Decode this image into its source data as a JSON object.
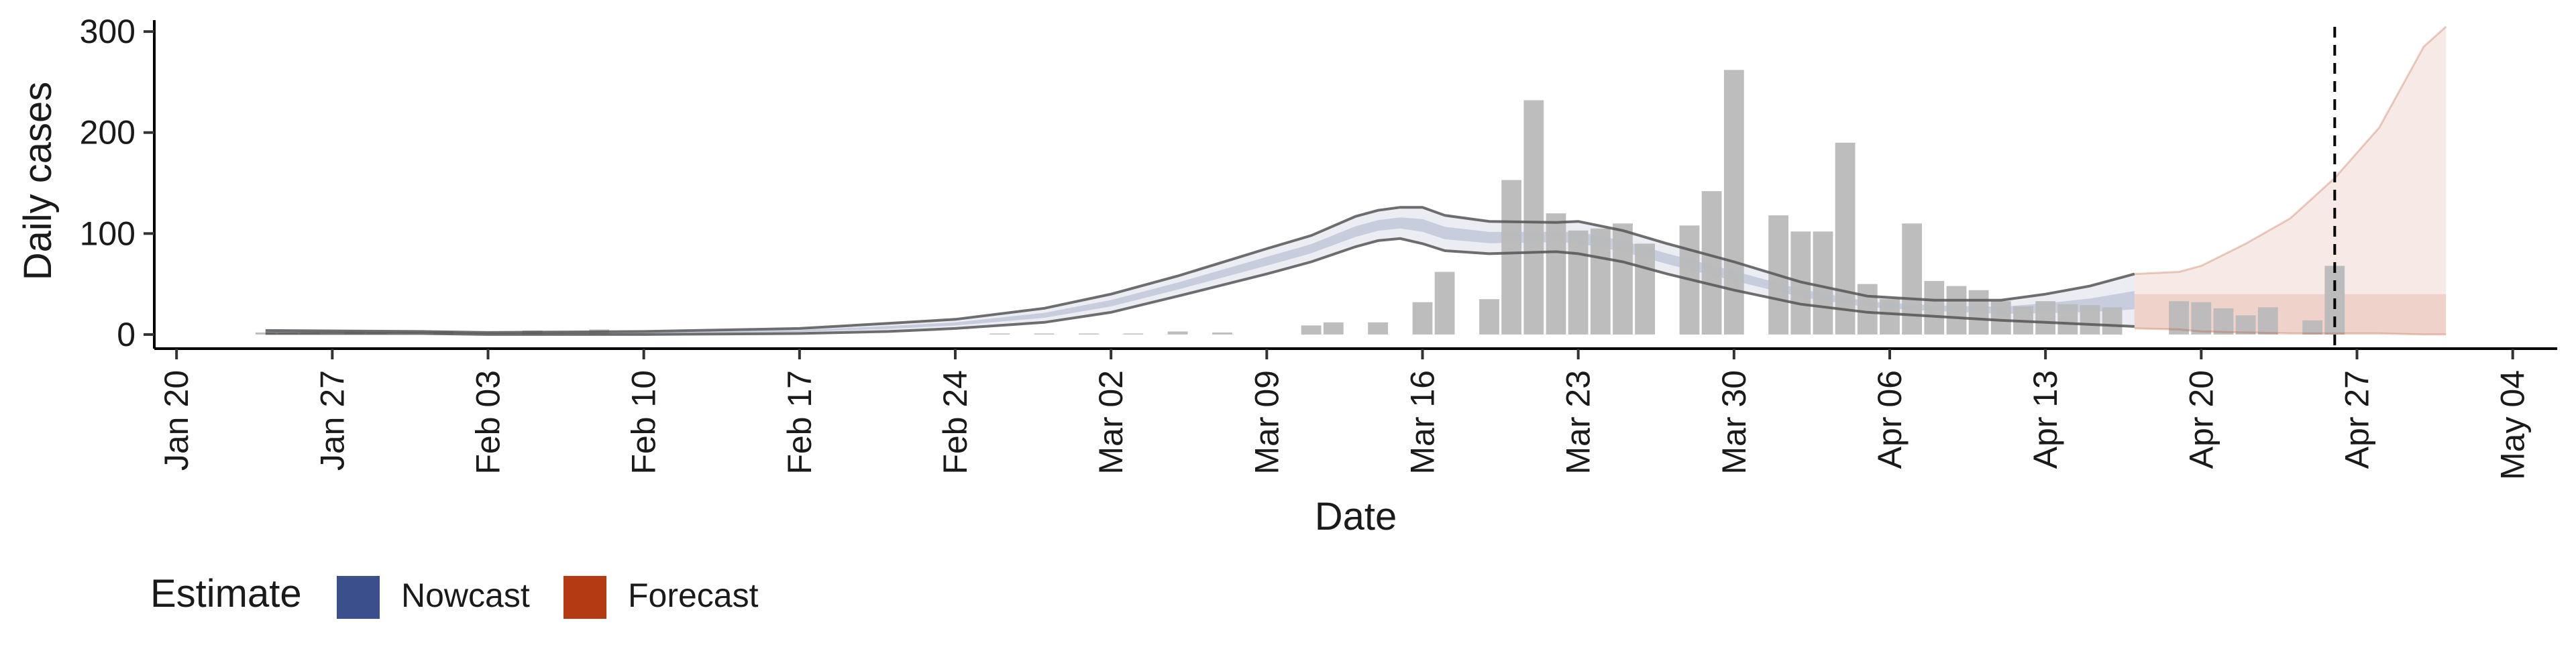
{
  "chart_data": {
    "type": "bar",
    "xlabel": "Date",
    "ylabel": "Daily cases",
    "x_ticks": [
      "Jan 20",
      "Jan 27",
      "Feb 03",
      "Feb 10",
      "Feb 17",
      "Feb 24",
      "Mar 02",
      "Mar 09",
      "Mar 16",
      "Mar 23",
      "Mar 30",
      "Apr 06",
      "Apr 13",
      "Apr 20",
      "Apr 27",
      "May 04"
    ],
    "y_ticks": [
      0,
      100,
      200,
      300
    ],
    "xlim": [
      "2020-01-19",
      "2020-05-06"
    ],
    "ylim": [
      -14,
      318
    ],
    "grid": false,
    "forecast_start": "2020-04-19",
    "vline_date": "2020-04-26",
    "vline_style": "dashed",
    "legend": {
      "title": "Estimate",
      "position": "bottom-left",
      "items": [
        {
          "label": "Nowcast",
          "color": "#3A4F8C"
        },
        {
          "label": "Forecast",
          "color": "#B33A12"
        }
      ]
    },
    "colors": {
      "bars": "#B9B9B9",
      "nowcast": "#3A4F8C",
      "forecast": "#B33A12",
      "outline": "#555555",
      "vline": "#000000"
    },
    "reported_cases": [
      {
        "date": "2020-01-24",
        "value": 2
      },
      {
        "date": "2020-01-25",
        "value": 2
      },
      {
        "date": "2020-01-26",
        "value": 3
      },
      {
        "date": "2020-01-28",
        "value": 3
      },
      {
        "date": "2020-01-29",
        "value": 2
      },
      {
        "date": "2020-02-01",
        "value": 3
      },
      {
        "date": "2020-02-05",
        "value": 4
      },
      {
        "date": "2020-02-08",
        "value": 5
      },
      {
        "date": "2020-02-26",
        "value": 1
      },
      {
        "date": "2020-02-28",
        "value": 1
      },
      {
        "date": "2020-03-01",
        "value": 1
      },
      {
        "date": "2020-03-03",
        "value": 1
      },
      {
        "date": "2020-03-05",
        "value": 3
      },
      {
        "date": "2020-03-07",
        "value": 2
      },
      {
        "date": "2020-03-11",
        "value": 9
      },
      {
        "date": "2020-03-12",
        "value": 12
      },
      {
        "date": "2020-03-14",
        "value": 12
      },
      {
        "date": "2020-03-16",
        "value": 32
      },
      {
        "date": "2020-03-17",
        "value": 62
      },
      {
        "date": "2020-03-19",
        "value": 35
      },
      {
        "date": "2020-03-20",
        "value": 153
      },
      {
        "date": "2020-03-21",
        "value": 232
      },
      {
        "date": "2020-03-22",
        "value": 120
      },
      {
        "date": "2020-03-23",
        "value": 103
      },
      {
        "date": "2020-03-24",
        "value": 105
      },
      {
        "date": "2020-03-25",
        "value": 110
      },
      {
        "date": "2020-03-26",
        "value": 90
      },
      {
        "date": "2020-03-28",
        "value": 108
      },
      {
        "date": "2020-03-29",
        "value": 142
      },
      {
        "date": "2020-03-30",
        "value": 262
      },
      {
        "date": "2020-04-01",
        "value": 118
      },
      {
        "date": "2020-04-02",
        "value": 102
      },
      {
        "date": "2020-04-03",
        "value": 102
      },
      {
        "date": "2020-04-04",
        "value": 190
      },
      {
        "date": "2020-04-05",
        "value": 50
      },
      {
        "date": "2020-04-06",
        "value": 35
      },
      {
        "date": "2020-04-07",
        "value": 110
      },
      {
        "date": "2020-04-08",
        "value": 53
      },
      {
        "date": "2020-04-09",
        "value": 48
      },
      {
        "date": "2020-04-10",
        "value": 44
      },
      {
        "date": "2020-04-11",
        "value": 33
      },
      {
        "date": "2020-04-12",
        "value": 28
      },
      {
        "date": "2020-04-13",
        "value": 33
      },
      {
        "date": "2020-04-14",
        "value": 30
      },
      {
        "date": "2020-04-15",
        "value": 29
      },
      {
        "date": "2020-04-16",
        "value": 27
      },
      {
        "date": "2020-04-19",
        "value": 33
      },
      {
        "date": "2020-04-20",
        "value": 32
      },
      {
        "date": "2020-04-21",
        "value": 26
      },
      {
        "date": "2020-04-22",
        "value": 19
      },
      {
        "date": "2020-04-23",
        "value": 27
      },
      {
        "date": "2020-04-25",
        "value": 14
      },
      {
        "date": "2020-04-26",
        "value": 68
      }
    ],
    "nowcast_band": [
      {
        "date": "2020-01-24",
        "lo": 1,
        "hi": 4
      },
      {
        "date": "2020-01-31",
        "lo": 1,
        "hi": 3
      },
      {
        "date": "2020-02-03",
        "lo": 0,
        "hi": 2
      },
      {
        "date": "2020-02-10",
        "lo": 0,
        "hi": 3
      },
      {
        "date": "2020-02-17",
        "lo": 1,
        "hi": 6
      },
      {
        "date": "2020-02-21",
        "lo": 3,
        "hi": 11
      },
      {
        "date": "2020-02-24",
        "lo": 6,
        "hi": 15
      },
      {
        "date": "2020-02-28",
        "lo": 12,
        "hi": 26
      },
      {
        "date": "2020-03-02",
        "lo": 22,
        "hi": 40
      },
      {
        "date": "2020-03-05",
        "lo": 38,
        "hi": 58
      },
      {
        "date": "2020-03-09",
        "lo": 60,
        "hi": 85
      },
      {
        "date": "2020-03-11",
        "lo": 72,
        "hi": 98
      },
      {
        "date": "2020-03-13",
        "lo": 87,
        "hi": 117
      },
      {
        "date": "2020-03-14",
        "lo": 93,
        "hi": 123
      },
      {
        "date": "2020-03-15",
        "lo": 95,
        "hi": 126
      },
      {
        "date": "2020-03-16",
        "lo": 90,
        "hi": 126
      },
      {
        "date": "2020-03-17",
        "lo": 83,
        "hi": 118
      },
      {
        "date": "2020-03-19",
        "lo": 80,
        "hi": 112
      },
      {
        "date": "2020-03-22",
        "lo": 82,
        "hi": 111
      },
      {
        "date": "2020-03-23",
        "lo": 80,
        "hi": 112
      },
      {
        "date": "2020-03-25",
        "lo": 72,
        "hi": 103
      },
      {
        "date": "2020-03-27",
        "lo": 60,
        "hi": 90
      },
      {
        "date": "2020-03-30",
        "lo": 44,
        "hi": 72
      },
      {
        "date": "2020-04-02",
        "lo": 30,
        "hi": 52
      },
      {
        "date": "2020-04-05",
        "lo": 22,
        "hi": 38
      },
      {
        "date": "2020-04-08",
        "lo": 18,
        "hi": 34
      },
      {
        "date": "2020-04-11",
        "lo": 14,
        "hi": 34
      },
      {
        "date": "2020-04-13",
        "lo": 12,
        "hi": 40
      },
      {
        "date": "2020-04-15",
        "lo": 10,
        "hi": 48
      },
      {
        "date": "2020-04-17",
        "lo": 8,
        "hi": 60
      }
    ],
    "forecast_band": [
      {
        "date": "2020-04-17",
        "lo": 6,
        "hi": 60
      },
      {
        "date": "2020-04-19",
        "lo": 5,
        "hi": 62
      },
      {
        "date": "2020-04-20",
        "lo": 3,
        "hi": 68
      },
      {
        "date": "2020-04-22",
        "lo": 2,
        "hi": 90
      },
      {
        "date": "2020-04-24",
        "lo": 1,
        "hi": 115
      },
      {
        "date": "2020-04-26",
        "lo": 1,
        "hi": 155
      },
      {
        "date": "2020-04-28",
        "lo": 1,
        "hi": 205
      },
      {
        "date": "2020-04-30",
        "lo": 0,
        "hi": 285
      },
      {
        "date": "2020-05-01",
        "lo": 0,
        "hi": 305
      }
    ]
  }
}
